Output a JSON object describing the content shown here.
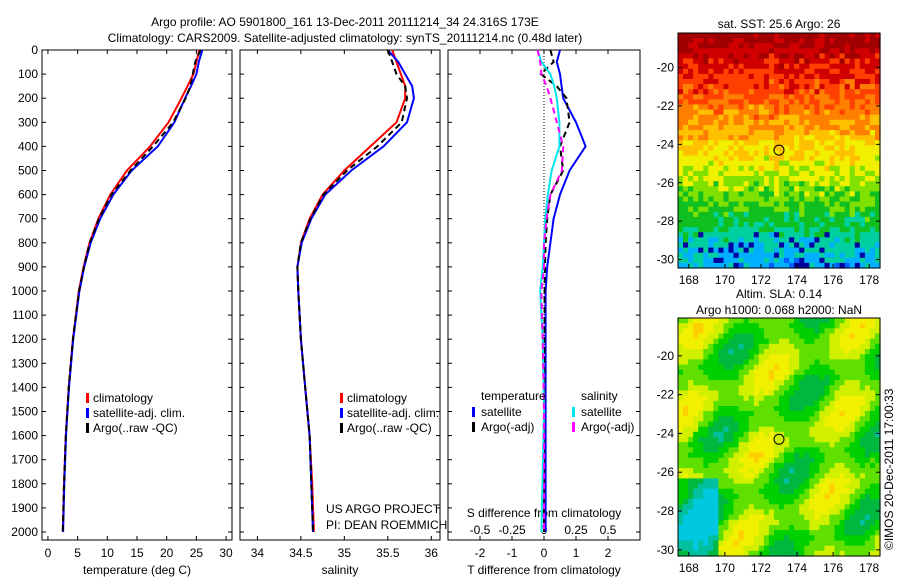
{
  "title_line1": "Argo profile: AO 5901800_161 13-Dec-2011 20111214_34 24.316S 173E",
  "title_line2": "Climatology: CARS2009. Satellite-adjusted climatology: synTS_20111214.nc (0.48d later)",
  "credit": "US ARGO PROJECT",
  "pi": "PI: DEAN ROEMMICH",
  "watermark": "©IMOS 20-Dec-2011 17:00:33",
  "colors": {
    "climatology": "#ff0000",
    "satellite": "#0000ff",
    "argo": "#000000",
    "s_satellite": "#00e5ee",
    "s_argo": "#ff00ff"
  },
  "chart_data": [
    {
      "type": "line",
      "name": "temperature",
      "xlabel": "temperature (deg C)",
      "xlim": [
        -1,
        31
      ],
      "ylim": [
        2050,
        0
      ],
      "xticks": [
        0,
        5,
        10,
        15,
        20,
        25,
        30
      ],
      "yticks": [
        0,
        100,
        200,
        300,
        400,
        500,
        600,
        700,
        800,
        900,
        1000,
        1100,
        1200,
        1300,
        1400,
        1500,
        1600,
        1700,
        1800,
        1900,
        2000
      ],
      "legend": [
        "climatology",
        "satellite-adj. clim.",
        "Argo(..raw -QC)"
      ],
      "depth": [
        0,
        50,
        100,
        150,
        200,
        300,
        400,
        500,
        600,
        700,
        800,
        900,
        1000,
        1200,
        1400,
        1600,
        1800,
        2000
      ],
      "series": [
        {
          "name": "climatology",
          "values": [
            25.5,
            25,
            24.5,
            23.5,
            22.5,
            20.3,
            17.2,
            13.3,
            10.5,
            8.5,
            7,
            6,
            5.2,
            4.2,
            3.5,
            3,
            2.7,
            2.5
          ]
        },
        {
          "name": "satellite-adj. clim.",
          "values": [
            26,
            25.4,
            25,
            24.1,
            23.1,
            21.3,
            18.5,
            14.1,
            11,
            8.8,
            7.2,
            6.1,
            5.3,
            4.25,
            3.55,
            3.05,
            2.75,
            2.55
          ]
        },
        {
          "name": "Argo",
          "values": [
            25.7,
            24.8,
            24.4,
            24,
            23.2,
            21.1,
            17.7,
            13.9,
            10.7,
            8.6,
            7.05,
            6.05,
            5.25,
            4.2,
            3.5,
            3.0,
            2.7,
            2.5
          ]
        }
      ]
    },
    {
      "type": "line",
      "name": "salinity",
      "xlabel": "salinity",
      "xlim": [
        33.8,
        36.1
      ],
      "ylim": [
        2050,
        0
      ],
      "xticks": [
        34,
        34.5,
        35,
        35.5,
        36
      ],
      "legend": [
        "climatology",
        "satellite-adj. clim.",
        "Argo(..raw -QC)"
      ],
      "depth": [
        0,
        50,
        100,
        150,
        200,
        300,
        400,
        500,
        600,
        700,
        800,
        900,
        1000,
        1200,
        1400,
        1600,
        1800,
        2000
      ],
      "series": [
        {
          "name": "climatology",
          "values": [
            35.55,
            35.6,
            35.65,
            35.7,
            35.7,
            35.6,
            35.3,
            35.0,
            34.75,
            34.6,
            34.5,
            34.46,
            34.47,
            34.5,
            34.55,
            34.6,
            34.63,
            34.65
          ]
        },
        {
          "name": "satellite-adj. clim.",
          "values": [
            35.5,
            35.62,
            35.7,
            35.78,
            35.8,
            35.72,
            35.45,
            35.08,
            34.78,
            34.62,
            34.51,
            34.46,
            34.47,
            34.5,
            34.55,
            34.6,
            34.62,
            34.64
          ]
        },
        {
          "name": "Argo",
          "values": [
            35.5,
            35.55,
            35.6,
            35.7,
            35.72,
            35.66,
            35.38,
            35.03,
            34.76,
            34.61,
            34.5,
            34.46,
            34.47,
            34.5,
            34.55,
            34.6,
            34.62,
            34.64
          ]
        }
      ]
    },
    {
      "type": "line",
      "name": "difference",
      "xlabel": "T difference from climatology",
      "x2label": "S difference from climatology",
      "xlim": [
        -3,
        3
      ],
      "x2lim": [
        -0.75,
        0.75
      ],
      "xticks": [
        -2,
        -1,
        0,
        1,
        2
      ],
      "x2ticks": [
        -0.5,
        -0.25,
        0,
        0.25,
        0.5
      ],
      "ylim": [
        2050,
        0
      ],
      "legend_headers": [
        "temperature",
        "salinity"
      ],
      "legend": [
        "satellite",
        "Argo(-adj)",
        "satellite",
        "Argo(-adj)"
      ],
      "depth": [
        0,
        50,
        100,
        150,
        200,
        300,
        400,
        500,
        600,
        700,
        800,
        900,
        1000,
        1200,
        1500,
        2000
      ],
      "series": [
        {
          "name": "T satellite",
          "values": [
            0.5,
            0.4,
            0.5,
            0.55,
            0.6,
            1.0,
            1.3,
            0.8,
            0.5,
            0.3,
            0.2,
            0.1,
            0.05,
            0.05,
            0.05,
            0.05
          ]
        },
        {
          "name": "T Argo(-adj)",
          "values": [
            0.2,
            0.3,
            -0.1,
            0.4,
            0.7,
            0.8,
            0.5,
            0.6,
            0.2,
            0.1,
            0.05,
            0.03,
            0.02,
            0.02,
            0.01,
            0
          ]
        },
        {
          "name": "S satellite",
          "values": [
            -0.05,
            -0.02,
            0.05,
            0.08,
            0.1,
            0.12,
            0.12,
            0.06,
            0.03,
            0.01,
            0,
            -0.01,
            -0.03,
            -0.01,
            0,
            -0.02
          ]
        },
        {
          "name": "S Argo(-adj)",
          "values": [
            -0.05,
            -0.03,
            -0.02,
            0.02,
            0.05,
            0.1,
            0.15,
            0.14,
            0.05,
            0.02,
            0,
            0,
            -0.02,
            -0.01,
            0,
            0
          ]
        }
      ]
    }
  ],
  "maps": [
    {
      "title": "sat. SST: 25.6 Argo: 26",
      "lonticks": [
        168,
        170,
        172,
        174,
        176,
        178
      ],
      "latticks": [
        -20,
        -22,
        -24,
        -26,
        -28,
        -30
      ],
      "float": [
        173,
        -24.3
      ]
    },
    {
      "title": "Altim. SLA: 0.14",
      "subtitle": "Argo h1000: 0.068 h2000: NaN",
      "lonticks": [
        168,
        170,
        172,
        174,
        176,
        178
      ],
      "latticks": [
        -20,
        -22,
        -24,
        -26,
        -28,
        -30
      ],
      "float": [
        173,
        -24.3
      ]
    }
  ]
}
